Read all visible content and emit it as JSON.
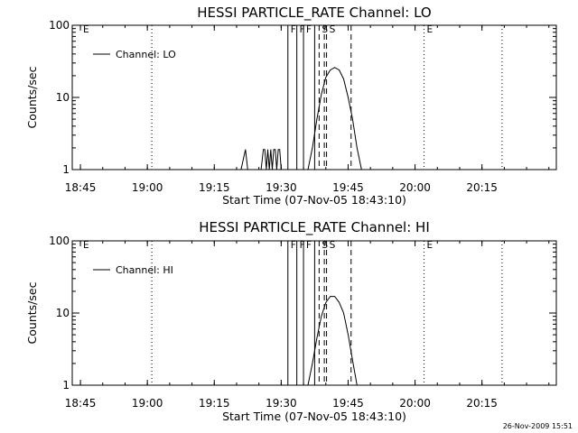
{
  "chart_data": [
    {
      "type": "line",
      "title": "HESSI PARTICLE_RATE Channel: LO",
      "ylabel": "Counts/sec",
      "xlabel": "Start Time (07-Nov-05 18:43:10)",
      "yscale": "log",
      "ylim": [
        1,
        100
      ],
      "xlim_minutes_from_start": [
        0,
        108.5
      ],
      "x_ticks": [
        "18:45",
        "19:00",
        "19:15",
        "19:30",
        "19:45",
        "20:00",
        "20:15"
      ],
      "y_ticks": [
        "1",
        "10",
        "100"
      ],
      "grid": false,
      "legend_position": "top-left",
      "series": [
        {
          "name": "Channel: LO",
          "points": [
            [
              "19:21:00",
              1
            ],
            [
              "19:22:00",
              1.9
            ],
            [
              "19:22:30",
              1
            ],
            [
              "19:25:30",
              1
            ],
            [
              "19:26:00",
              1.9
            ],
            [
              "19:26:20",
              1.9
            ],
            [
              "19:26:40",
              1
            ],
            [
              "19:27:00",
              1.9
            ],
            [
              "19:27:20",
              1
            ],
            [
              "19:27:40",
              1.9
            ],
            [
              "19:28:00",
              1
            ],
            [
              "19:28:20",
              1.9
            ],
            [
              "19:28:40",
              1.9
            ],
            [
              "19:29:00",
              1
            ],
            [
              "19:29:20",
              1.9
            ],
            [
              "19:29:40",
              1.9
            ],
            [
              "19:30:00",
              1
            ],
            [
              "19:36:00",
              1
            ],
            [
              "19:37:00",
              2
            ],
            [
              "19:38:00",
              5
            ],
            [
              "19:39:00",
              11
            ],
            [
              "19:40:00",
              19
            ],
            [
              "19:41:00",
              24
            ],
            [
              "19:42:00",
              26
            ],
            [
              "19:43:00",
              24
            ],
            [
              "19:44:00",
              18
            ],
            [
              "19:45:00",
              10
            ],
            [
              "19:46:00",
              5
            ],
            [
              "19:47:00",
              2
            ],
            [
              "19:48:00",
              1
            ]
          ]
        }
      ],
      "markers": [
        {
          "time": "18:45:00",
          "style": "none",
          "label": "E"
        },
        {
          "time": "19:01:00",
          "style": "dotted",
          "label": ""
        },
        {
          "time": "19:31:30",
          "style": "solid",
          "label": "F"
        },
        {
          "time": "19:33:30",
          "style": "solid",
          "label": "F"
        },
        {
          "time": "19:35:00",
          "style": "solid",
          "label": "F"
        },
        {
          "time": "19:37:30",
          "style": "solid",
          "label": ""
        },
        {
          "time": "19:38:30",
          "style": "dashed",
          "label": "S"
        },
        {
          "time": "19:39:40",
          "style": "dashed",
          "label": ""
        },
        {
          "time": "19:40:10",
          "style": "dashed",
          "label": "S"
        },
        {
          "time": "19:45:40",
          "style": "dashed",
          "label": ""
        },
        {
          "time": "20:02:00",
          "style": "dotted",
          "label": "E"
        },
        {
          "time": "20:19:30",
          "style": "dotted",
          "label": ""
        }
      ]
    },
    {
      "type": "line",
      "title": "HESSI PARTICLE_RATE Channel: HI",
      "ylabel": "Counts/sec",
      "xlabel": "Start Time (07-Nov-05 18:43:10)",
      "yscale": "log",
      "ylim": [
        1,
        100
      ],
      "xlim_minutes_from_start": [
        0,
        108.5
      ],
      "x_ticks": [
        "18:45",
        "19:00",
        "19:15",
        "19:30",
        "19:45",
        "20:00",
        "20:15"
      ],
      "y_ticks": [
        "1",
        "10",
        "100"
      ],
      "grid": false,
      "legend_position": "top-left",
      "series": [
        {
          "name": "Channel: HI",
          "points": [
            [
              "19:36:00",
              1
            ],
            [
              "19:37:00",
              2
            ],
            [
              "19:38:00",
              4.5
            ],
            [
              "19:39:00",
              9
            ],
            [
              "19:40:00",
              14
            ],
            [
              "19:41:00",
              17
            ],
            [
              "19:42:00",
              17
            ],
            [
              "19:43:00",
              14
            ],
            [
              "19:44:00",
              10
            ],
            [
              "19:45:00",
              5
            ],
            [
              "19:46:00",
              2.2
            ],
            [
              "19:47:00",
              1
            ]
          ]
        }
      ],
      "markers": [
        {
          "time": "18:45:00",
          "style": "none",
          "label": "E"
        },
        {
          "time": "19:01:00",
          "style": "dotted",
          "label": ""
        },
        {
          "time": "19:31:30",
          "style": "solid",
          "label": "F"
        },
        {
          "time": "19:33:30",
          "style": "solid",
          "label": "F"
        },
        {
          "time": "19:35:00",
          "style": "solid",
          "label": "F"
        },
        {
          "time": "19:37:30",
          "style": "solid",
          "label": ""
        },
        {
          "time": "19:38:30",
          "style": "dashed",
          "label": "S"
        },
        {
          "time": "19:39:40",
          "style": "dashed",
          "label": ""
        },
        {
          "time": "19:40:10",
          "style": "dashed",
          "label": "S"
        },
        {
          "time": "19:45:40",
          "style": "dashed",
          "label": ""
        },
        {
          "time": "20:02:00",
          "style": "dotted",
          "label": "E"
        },
        {
          "time": "20:19:30",
          "style": "dotted",
          "label": ""
        }
      ]
    }
  ],
  "footer": {
    "timestamp": "26-Nov-2009 15:51"
  },
  "colors": {
    "line": "#000000",
    "background": "#ffffff"
  }
}
